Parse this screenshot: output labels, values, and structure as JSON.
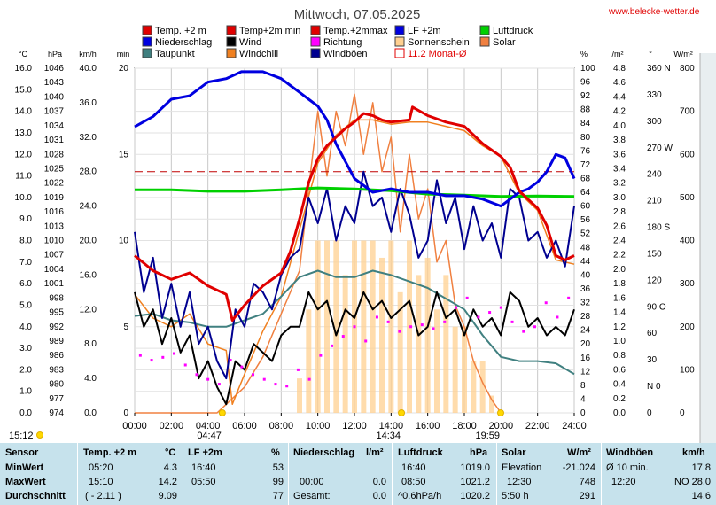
{
  "site": {
    "url": "www.belecke-wetter.de"
  },
  "chart_data": {
    "type": "line",
    "title": "Mittwoch, 07.05.2025",
    "x_ticks": [
      "00:00",
      "02:00",
      "04:00",
      "06:00",
      "08:00",
      "10:00",
      "12:00",
      "14:00",
      "16:00",
      "18:00",
      "20:00",
      "22:00",
      "24:00"
    ],
    "x_range_hours": [
      0,
      24
    ],
    "left_axes": [
      {
        "unit": "°C",
        "range": [
          0,
          16
        ],
        "ticks": [
          "0.0",
          "1.0",
          "2.0",
          "3.0",
          "4.0",
          "5.0",
          "6.0",
          "7.0",
          "8.0",
          "9.0",
          "10.0",
          "11.0",
          "12.0",
          "13.0",
          "14.0",
          "15.0",
          "16.0"
        ]
      },
      {
        "unit": "hPa",
        "range": [
          974,
          1046
        ],
        "ticks": [
          "974",
          "977",
          "980",
          "983",
          "986",
          "989",
          "992",
          "995",
          "998",
          "1001",
          "1004",
          "1007",
          "1010",
          "1013",
          "1016",
          "1019",
          "1022",
          "1025",
          "1028",
          "1031",
          "1034",
          "1037",
          "1040",
          "1043",
          "1046"
        ]
      },
      {
        "unit": "km/h",
        "range": [
          0,
          40
        ],
        "ticks": [
          "0.0",
          "4.0",
          "8.0",
          "12.0",
          "16.0",
          "20.0",
          "24.0",
          "28.0",
          "32.0",
          "36.0",
          "40.0"
        ]
      },
      {
        "unit": "min",
        "range": [
          0,
          20
        ],
        "ticks": [
          "0",
          "5",
          "10",
          "15",
          "20"
        ]
      }
    ],
    "right_axes": [
      {
        "unit": "%",
        "range": [
          0,
          100
        ],
        "ticks": [
          "0",
          "4",
          "8",
          "12",
          "16",
          "20",
          "24",
          "28",
          "32",
          "36",
          "40",
          "44",
          "48",
          "52",
          "56",
          "60",
          "64",
          "68",
          "72",
          "76",
          "80",
          "84",
          "88",
          "92",
          "96",
          "100"
        ]
      },
      {
        "unit": "l/m²",
        "range": [
          0,
          5
        ],
        "ticks": [
          "0.0",
          "0.2",
          "0.4",
          "0.6",
          "0.8",
          "1.0",
          "1.2",
          "1.4",
          "1.6",
          "1.8",
          "2.0",
          "2.2",
          "2.4",
          "2.6",
          "2.8",
          "3.0",
          "3.2",
          "3.4",
          "3.6",
          "3.8",
          "4.0",
          "4.2",
          "4.4",
          "4.6",
          "4.8"
        ]
      },
      {
        "unit": "°",
        "range": [
          0,
          360
        ],
        "ticks": [
          "0",
          "N 0",
          "30",
          "60",
          "90 O",
          "120",
          "150",
          "180 S",
          "210",
          "240",
          "270 W",
          "300",
          "330",
          "360 N"
        ]
      },
      {
        "unit": "W/m²",
        "range": [
          0,
          800
        ],
        "ticks": [
          "0",
          "100",
          "200",
          "300",
          "400",
          "500",
          "600",
          "700",
          "800"
        ]
      }
    ],
    "legend": [
      {
        "label": "Temp. +2 m",
        "color": "#e00000"
      },
      {
        "label": "Temp+2m  min",
        "color": "#e00000"
      },
      {
        "label": "Temp.+2mmax",
        "color": "#e00000"
      },
      {
        "label": "LF +2m",
        "color": "#0000e0"
      },
      {
        "label": "Luftdruck",
        "color": "#00d000"
      },
      {
        "label": "Niederschlag",
        "color": "#0000e0"
      },
      {
        "label": "Wind",
        "color": "#000000"
      },
      {
        "label": "Richtung",
        "color": "#ff00ff"
      },
      {
        "label": "Sonnenschein",
        "color": "#ffd090"
      },
      {
        "label": "Solar",
        "color": "#f08040"
      },
      {
        "label": "Taupunkt",
        "color": "#408080"
      },
      {
        "label": "Windchill",
        "color": "#f08020"
      },
      {
        "label": "Windböen",
        "color": "#000090"
      },
      {
        "label": "11.2 Monat-Ø",
        "color": "#e00000"
      }
    ],
    "reference_line": {
      "label": "11.2 Monat-Ø",
      "value_c": 11.2,
      "color": "#c00000"
    },
    "sun_markers": {
      "sunrise": "04:47",
      "noon": "14:34",
      "sunset": "19:59"
    },
    "bottom_left_time": "15:12",
    "series": [
      {
        "name": "Temp. +2 m",
        "color": "#e00000",
        "unit": "°C",
        "x": [
          0,
          1,
          2,
          3,
          4,
          5,
          5.33,
          6,
          7,
          8,
          8.5,
          9,
          9.5,
          10,
          10.5,
          11,
          11.5,
          12,
          12.5,
          13,
          13.5,
          14,
          15,
          15.17,
          16,
          17,
          18,
          19,
          20,
          20.5,
          21,
          21.5,
          22,
          22.5,
          23,
          23.5,
          24
        ],
        "y": [
          7.3,
          6.6,
          6.2,
          6.5,
          5.9,
          5.5,
          4.3,
          5.0,
          5.9,
          6.5,
          7.5,
          9.0,
          10.7,
          11.8,
          12.4,
          12.8,
          13.2,
          13.5,
          13.9,
          13.8,
          13.6,
          13.5,
          13.6,
          14.2,
          13.8,
          13.5,
          13.3,
          12.5,
          11.9,
          11.4,
          10.3,
          9.9,
          9.5,
          8.7,
          7.3,
          7.1,
          7.3
        ]
      },
      {
        "name": "LF +2m",
        "color": "#0000e0",
        "unit": "%",
        "x": [
          0,
          1,
          2,
          3,
          4,
          5,
          5.83,
          6,
          7,
          8,
          8.5,
          9,
          9.5,
          10,
          10.5,
          11,
          12,
          13,
          14,
          15,
          16,
          17,
          18,
          19,
          20,
          20.5,
          21,
          21.5,
          22,
          22.5,
          23,
          23.5,
          24
        ],
        "y": [
          83,
          86,
          91,
          92,
          96,
          97,
          99,
          99,
          99,
          97,
          95,
          93,
          91,
          89,
          85,
          78,
          68,
          64,
          65,
          64,
          64,
          63,
          63,
          62,
          60,
          62,
          64,
          65,
          67,
          70,
          75,
          74,
          68
        ]
      },
      {
        "name": "Luftdruck",
        "color": "#00d000",
        "unit": "hPa",
        "x": [
          0,
          2,
          4,
          6,
          8,
          10,
          12,
          14,
          16,
          18,
          20,
          22,
          24
        ],
        "y": [
          1020.6,
          1020.6,
          1020.3,
          1020.3,
          1020.6,
          1021.0,
          1020.8,
          1020.4,
          1019.7,
          1019.5,
          1019.2,
          1019.3,
          1019.2
        ]
      },
      {
        "name": "Taupunkt",
        "color": "#408080",
        "unit": "°C",
        "x": [
          0,
          1,
          2,
          3,
          4,
          5,
          6,
          7,
          8,
          9,
          10,
          11,
          12,
          13,
          14,
          15,
          16,
          17,
          18,
          19,
          20,
          21,
          22,
          23,
          24
        ],
        "y": [
          4.5,
          4.6,
          4.3,
          4.2,
          4.0,
          4.0,
          4.3,
          4.6,
          5.4,
          6.3,
          6.6,
          6.3,
          6.3,
          6.6,
          6.4,
          6.1,
          5.8,
          5.3,
          4.8,
          3.6,
          2.6,
          2.4,
          2.4,
          2.3,
          1.8
        ]
      },
      {
        "name": "Wind",
        "color": "#000000",
        "unit": "km/h",
        "x": [
          0,
          0.5,
          1,
          1.5,
          2,
          2.5,
          3,
          3.5,
          4,
          4.5,
          5,
          5.5,
          6,
          6.5,
          7,
          7.5,
          8,
          8.5,
          9,
          9.5,
          10,
          10.5,
          11,
          11.5,
          12,
          12.5,
          13,
          13.5,
          14,
          14.5,
          15,
          15.5,
          16,
          16.5,
          17,
          17.5,
          18,
          18.5,
          19,
          19.5,
          20,
          20.5,
          21,
          21.5,
          22,
          22.5,
          23,
          23.5,
          24
        ],
        "y": [
          14,
          10,
          12,
          8,
          11,
          7,
          9,
          4,
          6,
          3,
          1,
          6,
          5,
          8,
          7,
          6,
          9,
          10,
          10,
          14,
          12,
          13,
          9,
          12,
          11,
          14,
          12,
          13,
          11,
          12,
          13,
          9,
          10,
          14,
          11,
          12,
          9,
          12,
          10,
          11,
          9,
          14,
          13,
          10,
          11,
          9,
          10,
          9,
          12
        ]
      },
      {
        "name": "Windböen",
        "color": "#000090",
        "unit": "km/h",
        "x": [
          0,
          0.5,
          1,
          1.5,
          2,
          2.5,
          3,
          3.5,
          4,
          4.5,
          5,
          5.5,
          6,
          6.5,
          7,
          7.5,
          8,
          8.5,
          9,
          9.5,
          10,
          10.5,
          11,
          11.5,
          12,
          12.5,
          13,
          13.5,
          14,
          14.5,
          15,
          15.5,
          16,
          16.5,
          17,
          17.5,
          18,
          18.5,
          19,
          19.5,
          20,
          20.5,
          21,
          21.5,
          22,
          22.5,
          23,
          23.5,
          24
        ],
        "y": [
          21,
          14,
          18,
          11,
          15,
          10,
          14,
          8,
          10,
          6,
          4,
          12,
          10,
          15,
          14,
          12,
          16,
          18,
          19,
          25,
          22,
          26,
          20,
          24,
          22,
          28,
          24,
          25,
          21,
          26,
          23,
          18,
          20,
          27,
          22,
          25,
          19,
          24,
          20,
          22,
          18,
          26,
          25,
          20,
          21,
          18,
          20,
          17,
          24
        ]
      },
      {
        "name": "Windchill",
        "color": "#f08020",
        "unit": "°C",
        "x": [
          0,
          1,
          2,
          3,
          4,
          5,
          5.33,
          6,
          7,
          8,
          9,
          10,
          11,
          12,
          13,
          14,
          15,
          16,
          17,
          18,
          19,
          20,
          21,
          22,
          23,
          24
        ],
        "y": [
          5.5,
          4.4,
          4.0,
          4.6,
          3.2,
          2.9,
          0.4,
          1.8,
          3.8,
          5.4,
          8.5,
          11.6,
          12.9,
          13.6,
          13.6,
          13.4,
          13.5,
          13.5,
          13.3,
          13.1,
          12.4,
          11.9,
          10.2,
          9.4,
          7.1,
          6.9
        ]
      },
      {
        "name": "Solar",
        "color": "#f08040",
        "unit": "W/m²",
        "x": [
          0,
          4.5,
          5,
          6,
          7,
          8,
          9,
          9.5,
          10,
          10.5,
          11,
          11.5,
          12,
          12.5,
          13,
          13.5,
          14,
          14.5,
          15,
          15.5,
          16,
          16.5,
          17,
          17.5,
          18,
          18.5,
          19,
          19.5,
          20
        ],
        "y": [
          0,
          0,
          20,
          60,
          130,
          230,
          330,
          520,
          700,
          550,
          700,
          620,
          740,
          600,
          720,
          560,
          640,
          420,
          600,
          450,
          520,
          350,
          400,
          250,
          200,
          120,
          70,
          30,
          0
        ]
      },
      {
        "name": "Sonnenschein",
        "color": "#ffd090",
        "unit": "min",
        "x": [
          9,
          9.5,
          10,
          10.5,
          11,
          11.5,
          12,
          12.5,
          13,
          13.5,
          14,
          14.5,
          15,
          15.5,
          16,
          16.5,
          17,
          17.5,
          18,
          18.5,
          19,
          19.5,
          20
        ],
        "y": [
          2,
          6,
          10,
          10,
          10,
          8,
          10,
          10,
          10,
          9,
          10,
          7,
          10,
          8,
          9,
          6,
          8,
          5,
          5,
          3,
          3,
          1,
          0
        ]
      }
    ],
    "wind_direction_deg": [
      60,
      55,
      58,
      62,
      50,
      40,
      35,
      30,
      55,
      48,
      40,
      35,
      30,
      28,
      45,
      35,
      60,
      70,
      80,
      90,
      75,
      100,
      95,
      85,
      90,
      92,
      88,
      95,
      110,
      120,
      100,
      105,
      110,
      95,
      85,
      90,
      115,
      100,
      120
    ]
  },
  "stats": {
    "headers": {
      "sensor": "Sensor",
      "temp": "Temp. +2 m",
      "temp_unit": "°C",
      "lf": "LF +2m",
      "lf_unit": "%",
      "rain": "Niederschlag",
      "rain_unit": "l/m²",
      "pressure": "Luftdruck",
      "pressure_unit": "hPa",
      "solar": "Solar",
      "solar_unit": "W/m²",
      "gust": "Windböen",
      "gust_unit": "km/h"
    },
    "rows": [
      {
        "label": "MinWert",
        "temp_time": "05:20",
        "temp_val": "4.3",
        "lf_time": "16:40",
        "lf_val": "53",
        "rain_time": "",
        "rain_val": "",
        "pressure_time": "16:40",
        "pressure_val": "1019.0",
        "solar_label": "Elevation",
        "solar_val": "-21.024",
        "gust_time": "Ø 10 min.",
        "gust_val": "17.8"
      },
      {
        "label": "MaxWert",
        "temp_time": "15:10",
        "temp_val": "14.2",
        "lf_time": "05:50",
        "lf_val": "99",
        "rain_time": "00:00",
        "rain_val": "0.0",
        "pressure_time": "08:50",
        "pressure_val": "1021.2",
        "solar_label": "12:30",
        "solar_val": "748",
        "gust_time": "12:20",
        "gust_val": "NO 28.0"
      },
      {
        "label": "Durchschnitt",
        "temp_time": "( - 2.11 )",
        "temp_val": "9.09",
        "lf_time": "",
        "lf_val": "77",
        "rain_time": "Gesamt:",
        "rain_val": "0.0",
        "pressure_time": "^0.6hPa/h",
        "pressure_val": "1020.2",
        "solar_label": "5:50 h",
        "solar_val": "291",
        "gust_time": "",
        "gust_val": "14.6"
      }
    ]
  }
}
